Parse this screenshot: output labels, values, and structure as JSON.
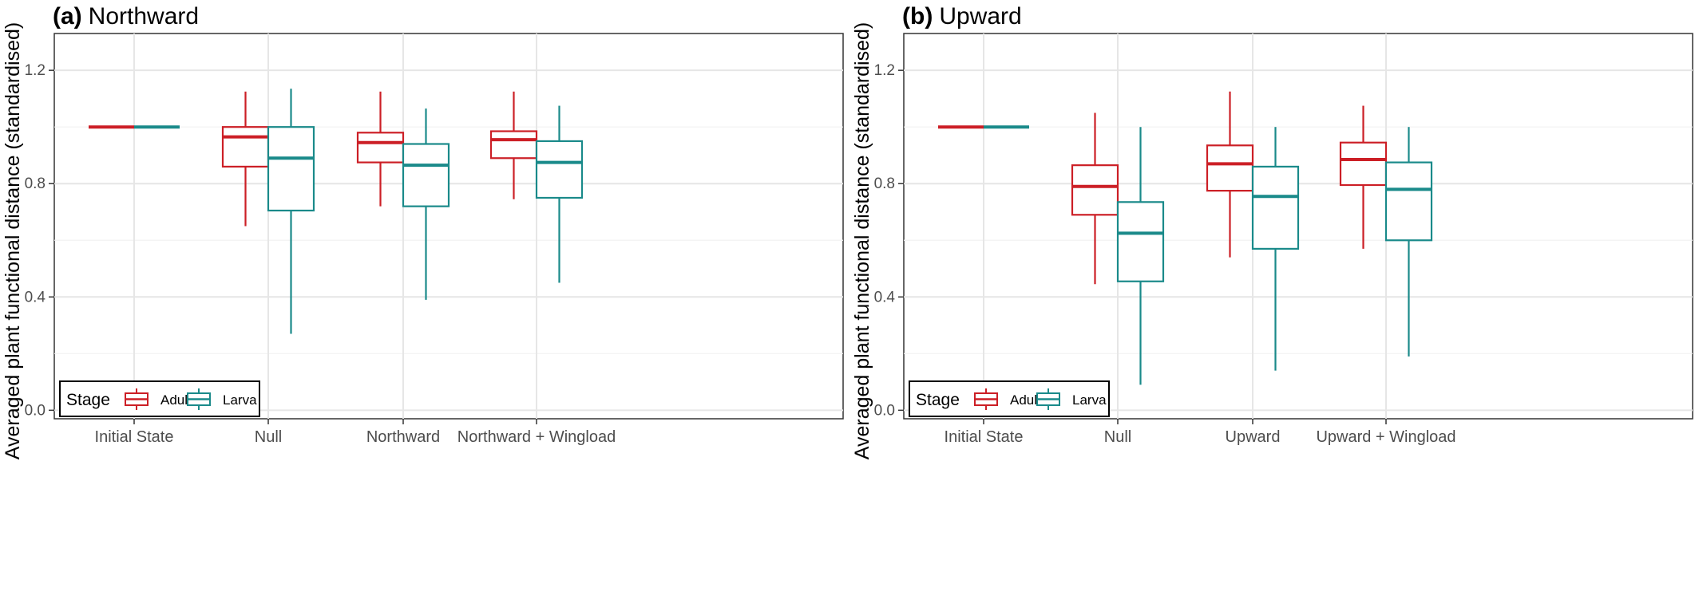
{
  "chart_data": [
    {
      "type": "box",
      "title_tag": "(a)",
      "title": "Northward",
      "ylabel": "Averaged plant functional distance (standardised)",
      "xlabel": "",
      "ylim": [
        -0.03,
        1.33
      ],
      "yticks": [
        0.0,
        0.4,
        0.8,
        1.2
      ],
      "ytick_labels": [
        "0.0",
        "0.4",
        "0.8",
        "1.2"
      ],
      "categories": [
        "Initial State",
        "Null",
        "Northward",
        "Northward + Wingload"
      ],
      "grid": true,
      "legend": {
        "title": "Stage",
        "position": "bottom-left",
        "entries": [
          "Adult",
          "Larva"
        ]
      },
      "series": [
        {
          "name": "Adult",
          "color": "#cc1f26",
          "boxes": [
            {
              "min": 1.0,
              "q1": 1.0,
              "median": 1.0,
              "q3": 1.0,
              "max": 1.0
            },
            {
              "min": 0.65,
              "q1": 0.86,
              "median": 0.965,
              "q3": 1.0,
              "max": 1.125
            },
            {
              "min": 0.72,
              "q1": 0.875,
              "median": 0.945,
              "q3": 0.98,
              "max": 1.125
            },
            {
              "min": 0.745,
              "q1": 0.89,
              "median": 0.955,
              "q3": 0.985,
              "max": 1.125
            }
          ]
        },
        {
          "name": "Larva",
          "color": "#1a8a8a",
          "boxes": [
            {
              "min": 1.0,
              "q1": 1.0,
              "median": 1.0,
              "q3": 1.0,
              "max": 1.0
            },
            {
              "min": 0.27,
              "q1": 0.705,
              "median": 0.89,
              "q3": 1.0,
              "max": 1.135
            },
            {
              "min": 0.39,
              "q1": 0.72,
              "median": 0.865,
              "q3": 0.94,
              "max": 1.065
            },
            {
              "min": 0.45,
              "q1": 0.75,
              "median": 0.875,
              "q3": 0.95,
              "max": 1.075
            }
          ]
        }
      ]
    },
    {
      "type": "box",
      "title_tag": "(b)",
      "title": "Upward",
      "ylabel": "Averaged plant functional distance (standardised)",
      "xlabel": "",
      "ylim": [
        -0.03,
        1.33
      ],
      "yticks": [
        0.0,
        0.4,
        0.8,
        1.2
      ],
      "ytick_labels": [
        "0.0",
        "0.4",
        "0.8",
        "1.2"
      ],
      "categories": [
        "Initial State",
        "Null",
        "Upward",
        "Upward + Wingload"
      ],
      "grid": true,
      "legend": {
        "title": "Stage",
        "position": "bottom-left",
        "entries": [
          "Adult",
          "Larva"
        ]
      },
      "series": [
        {
          "name": "Adult",
          "color": "#cc1f26",
          "boxes": [
            {
              "min": 1.0,
              "q1": 1.0,
              "median": 1.0,
              "q3": 1.0,
              "max": 1.0
            },
            {
              "min": 0.445,
              "q1": 0.69,
              "median": 0.79,
              "q3": 0.865,
              "max": 1.05
            },
            {
              "min": 0.54,
              "q1": 0.775,
              "median": 0.87,
              "q3": 0.935,
              "max": 1.125
            },
            {
              "min": 0.57,
              "q1": 0.795,
              "median": 0.885,
              "q3": 0.945,
              "max": 1.075
            }
          ]
        },
        {
          "name": "Larva",
          "color": "#1a8a8a",
          "boxes": [
            {
              "min": 1.0,
              "q1": 1.0,
              "median": 1.0,
              "q3": 1.0,
              "max": 1.0
            },
            {
              "min": 0.09,
              "q1": 0.455,
              "median": 0.625,
              "q3": 0.735,
              "max": 1.0
            },
            {
              "min": 0.14,
              "q1": 0.57,
              "median": 0.755,
              "q3": 0.86,
              "max": 1.0
            },
            {
              "min": 0.19,
              "q1": 0.6,
              "median": 0.78,
              "q3": 0.875,
              "max": 1.0
            }
          ]
        }
      ]
    }
  ]
}
